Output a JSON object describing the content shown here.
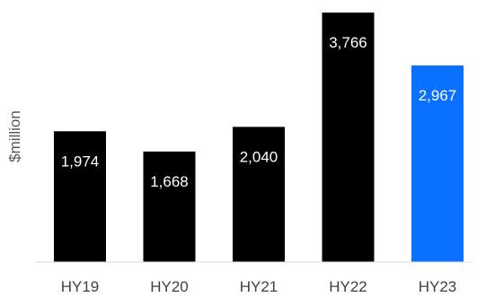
{
  "chart_data": {
    "type": "bar",
    "categories": [
      "HY19",
      "HY20",
      "HY21",
      "HY22",
      "HY23"
    ],
    "values": [
      1974,
      1668,
      2040,
      3766,
      2967
    ],
    "value_labels": [
      "1,974",
      "1,668",
      "2,040",
      "3,766",
      "2,967"
    ],
    "bar_colors": [
      "#000000",
      "#000000",
      "#000000",
      "#000000",
      "#0A70FF"
    ],
    "title": "",
    "xlabel": "",
    "ylabel": "$million",
    "ylim": [
      0,
      3766
    ],
    "grid": false,
    "legend": "none"
  }
}
